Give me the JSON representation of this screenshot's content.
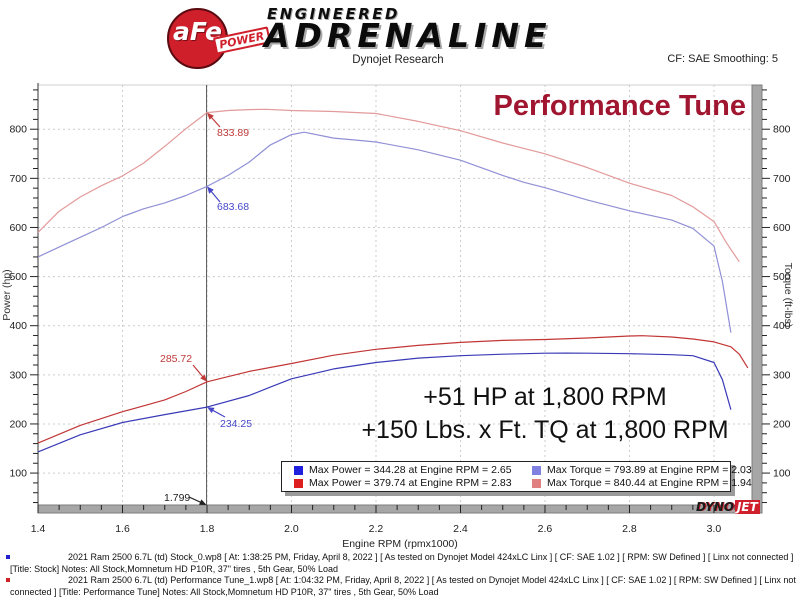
{
  "header": {
    "logo": {
      "afe": "aFe",
      "power": "POWER",
      "engineered": "ENGINEERED",
      "adrenaline": "ADRENALINE"
    },
    "subtitle": "Dynojet Research",
    "cf_label": "CF: SAE Smoothing: 5"
  },
  "overlay": {
    "hp_gain": "+51 HP at 1,800 RPM",
    "tq_gain": "+150 Lbs. x Ft. TQ at 1,800 RPM"
  },
  "legend": {
    "items": [
      {
        "swatch": "#1f1fdd",
        "text": "Max Power = 344.28 at Engine RPM = 2.65"
      },
      {
        "swatch": "#8080e0",
        "text": "Max Torque = 793.89 at Engine RPM = 2.03"
      },
      {
        "swatch": "#dd1f1f",
        "text": "Max Power = 379.74 at Engine RPM = 2.83"
      },
      {
        "swatch": "#e08080",
        "text": "Max Torque = 840.44 at Engine RPM = 1.94"
      }
    ]
  },
  "watermark": {
    "dyno": "DYNO",
    "jet": "JET"
  },
  "notes": [
    {
      "bullet_color": "#2222cc",
      "text": "2021 Ram 2500 6.7L (td) Stock_0.wp8 [ At: 1:38:25 PM, Friday, April 8, 2022 ] [ As tested on Dynojet Model 424xLC Linx ] [ CF: SAE 1.02 ] [ RPM: SW Defined ] [ Linx not connected ] [Title: Stock]  Notes: All Stock,Momnetum HD P10R, 37\" tires , 5th Gear, 50% Load"
    },
    {
      "bullet_color": "#cc2222",
      "text": "2021 Ram 2500 6.7L (td) Performance Tune_1.wp8 [ At: 1:04:32 PM, Friday, April 8, 2022 ] [ As tested on Dynojet Model 424xLC Linx ] [ CF: SAE 1.02 ] [ RPM: SW Defined ] [ Linx not connected ] [Title: Performance Tune] Notes: All Stock,Momnetum HD P10R, 37\" tires , 5th Gear, 50% Load"
    }
  ],
  "chart_data": {
    "type": "line",
    "title": "Performance Tune",
    "xlabel": "Engine RPM (rpmx1000)",
    "ylabel_left": "Power (hp)",
    "ylabel_right": "Torque (ft-lbs)",
    "xlim": [
      1.4,
      3.09
    ],
    "ylim": [
      35,
      890
    ],
    "x_ticks": [
      1.4,
      1.6,
      1.8,
      2.0,
      2.2,
      2.4,
      2.6,
      2.8,
      3.0
    ],
    "y_ticks": [
      100,
      200,
      300,
      400,
      500,
      600,
      700,
      800
    ],
    "grid": true,
    "legend_position": "bottom-center",
    "cursor_rpm": 1.799,
    "series": [
      {
        "name": "Stock Power (hp)",
        "color": "#3a3ab8",
        "points": [
          [
            1.4,
            143
          ],
          [
            1.5,
            178
          ],
          [
            1.6,
            203
          ],
          [
            1.7,
            219
          ],
          [
            1.8,
            234.25
          ],
          [
            1.9,
            258
          ],
          [
            1.95,
            275
          ],
          [
            2.0,
            292
          ],
          [
            2.1,
            312
          ],
          [
            2.2,
            325
          ],
          [
            2.3,
            334
          ],
          [
            2.4,
            339
          ],
          [
            2.5,
            342
          ],
          [
            2.6,
            344
          ],
          [
            2.65,
            344.28
          ],
          [
            2.7,
            344
          ],
          [
            2.8,
            343
          ],
          [
            2.9,
            341
          ],
          [
            2.95,
            339
          ],
          [
            3.0,
            325
          ],
          [
            3.02,
            290
          ],
          [
            3.04,
            229
          ]
        ]
      },
      {
        "name": "Performance Tune Power (hp)",
        "color": "#c23636",
        "points": [
          [
            1.4,
            161
          ],
          [
            1.5,
            197
          ],
          [
            1.6,
            225
          ],
          [
            1.7,
            249
          ],
          [
            1.75,
            266
          ],
          [
            1.8,
            285.72
          ],
          [
            1.9,
            307
          ],
          [
            2.0,
            323
          ],
          [
            2.1,
            340
          ],
          [
            2.2,
            352
          ],
          [
            2.3,
            360
          ],
          [
            2.4,
            366
          ],
          [
            2.5,
            370
          ],
          [
            2.6,
            372
          ],
          [
            2.7,
            375
          ],
          [
            2.8,
            379
          ],
          [
            2.83,
            379.74
          ],
          [
            2.9,
            377
          ],
          [
            2.95,
            373
          ],
          [
            3.0,
            367
          ],
          [
            3.04,
            357
          ],
          [
            3.06,
            342
          ],
          [
            3.08,
            314
          ]
        ]
      },
      {
        "name": "Stock Torque (ft-lbs)",
        "color": "#9090d6",
        "points": [
          [
            1.4,
            540
          ],
          [
            1.45,
            560
          ],
          [
            1.5,
            580
          ],
          [
            1.55,
            600
          ],
          [
            1.6,
            622
          ],
          [
            1.65,
            638
          ],
          [
            1.7,
            650
          ],
          [
            1.75,
            665
          ],
          [
            1.8,
            683.68
          ],
          [
            1.85,
            706
          ],
          [
            1.9,
            733
          ],
          [
            1.95,
            768
          ],
          [
            2.0,
            789
          ],
          [
            2.03,
            793.89
          ],
          [
            2.1,
            782
          ],
          [
            2.15,
            778
          ],
          [
            2.2,
            774
          ],
          [
            2.3,
            758
          ],
          [
            2.4,
            737
          ],
          [
            2.5,
            706
          ],
          [
            2.55,
            692
          ],
          [
            2.6,
            681
          ],
          [
            2.7,
            656
          ],
          [
            2.8,
            634
          ],
          [
            2.9,
            615
          ],
          [
            2.95,
            598
          ],
          [
            3.0,
            562
          ],
          [
            3.02,
            490
          ],
          [
            3.04,
            386
          ]
        ]
      },
      {
        "name": "Performance Tune Torque (ft-lbs)",
        "color": "#e39a9a",
        "points": [
          [
            1.4,
            590
          ],
          [
            1.45,
            633
          ],
          [
            1.5,
            662
          ],
          [
            1.55,
            685
          ],
          [
            1.6,
            705
          ],
          [
            1.65,
            731
          ],
          [
            1.7,
            765
          ],
          [
            1.75,
            801
          ],
          [
            1.8,
            833.89
          ],
          [
            1.85,
            838
          ],
          [
            1.9,
            840
          ],
          [
            1.94,
            840.44
          ],
          [
            2.0,
            838
          ],
          [
            2.1,
            836
          ],
          [
            2.2,
            832
          ],
          [
            2.3,
            816
          ],
          [
            2.4,
            797
          ],
          [
            2.5,
            772
          ],
          [
            2.6,
            750
          ],
          [
            2.7,
            722
          ],
          [
            2.8,
            690
          ],
          [
            2.9,
            665
          ],
          [
            2.95,
            642
          ],
          [
            3.0,
            612
          ],
          [
            3.03,
            568
          ],
          [
            3.06,
            530
          ]
        ]
      }
    ],
    "annotations": [
      {
        "label": "833.89",
        "color": "#c03a3a",
        "point": [
          1.8,
          833.89
        ],
        "text_xy": [
          217,
          136
        ],
        "tail": [
          220,
          127
        ]
      },
      {
        "label": "683.68",
        "color": "#4848c8",
        "point": [
          1.8,
          683.68
        ],
        "text_xy": [
          217,
          210
        ],
        "tail": [
          220,
          202
        ]
      },
      {
        "label": "285.72",
        "color": "#c03a3a",
        "point": [
          1.8,
          285.72
        ],
        "text_xy": [
          160,
          362
        ],
        "tail": [
          193,
          365
        ]
      },
      {
        "label": "234.25",
        "color": "#4848c8",
        "point": [
          1.8,
          234.25
        ],
        "text_xy": [
          220,
          427
        ],
        "tail": [
          225,
          417
        ]
      },
      {
        "label": "1.799",
        "color": "#222222",
        "point": [
          1.799,
          35
        ],
        "text_xy": [
          164,
          501
        ],
        "tail": [
          189,
          497
        ]
      }
    ]
  }
}
